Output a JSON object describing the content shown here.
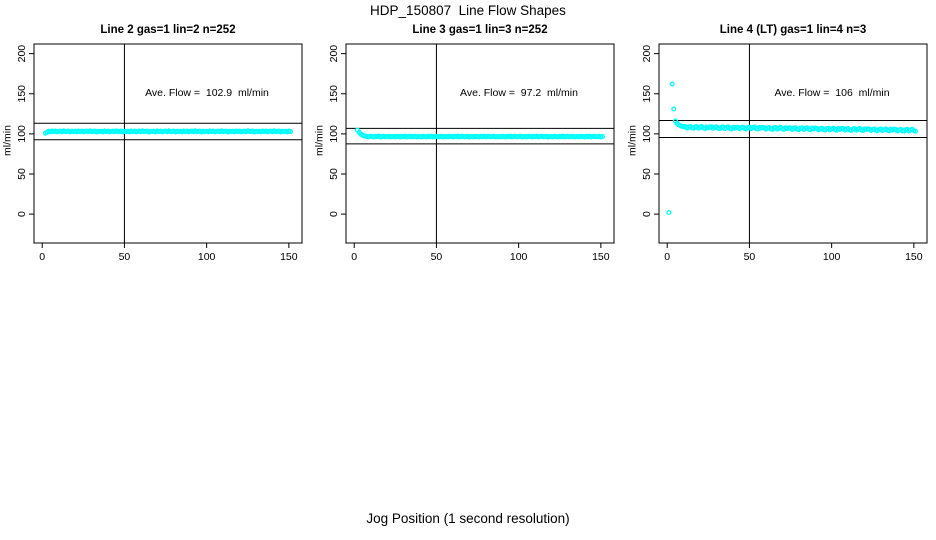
{
  "page": {
    "main_title": "HDP_150807  Line Flow Shapes",
    "x_axis_label": "Jog Position (1 second resolution)"
  },
  "colors": {
    "points": "#00FFFF",
    "axis": "#000000",
    "background": "#FFFFFF"
  },
  "chart_data": [
    {
      "type": "scatter",
      "title": "Line 2 gas=1 lin=2 n=252",
      "annotation": "Ave. Flow =  102.9  ml/min",
      "ave_flow_ml_min": 102.9,
      "ylabel": "ml/min",
      "marker": "open-circle",
      "xticks": [
        0,
        50,
        100,
        150
      ],
      "yticks": [
        0,
        50,
        100,
        150,
        200
      ],
      "xlim": [
        -5,
        158
      ],
      "ylim": [
        -36,
        212
      ],
      "ref_vline_x": 50,
      "ref_hlines": [
        113.2,
        92.6
      ],
      "annotation_center": {
        "x": 100,
        "y": 150
      },
      "outlier_points": [],
      "series": {
        "x_start": 2,
        "x_step": 1,
        "values": [
          100.8,
          102.0,
          103.2,
          102.6,
          103.5,
          102.9,
          103.3,
          102.5,
          103.1,
          103.4,
          102.7,
          103.6,
          102.8,
          103.0,
          103.4,
          102.4,
          103.2,
          102.8,
          103.2,
          102.6,
          103.5,
          102.9,
          103.3,
          102.5,
          103.1,
          103.4,
          102.7,
          103.6,
          102.8,
          103.0,
          103.4,
          102.4,
          103.2,
          102.8,
          103.2,
          102.6,
          103.5,
          102.9,
          103.3,
          102.5,
          103.1,
          103.4,
          102.7,
          103.6,
          102.8,
          103.0,
          103.4,
          102.4,
          103.2,
          102.8,
          103.2,
          102.6,
          103.5,
          102.9,
          103.3,
          102.5,
          103.1,
          103.4,
          102.7,
          103.6,
          102.8,
          103.0,
          103.4,
          102.4,
          103.2,
          102.8,
          103.2,
          102.6,
          103.5,
          102.9,
          103.3,
          102.5,
          103.1,
          103.4,
          102.7,
          103.6,
          102.8,
          103.0,
          103.4,
          102.4,
          103.2,
          102.8,
          103.2,
          102.6,
          103.5,
          102.9,
          103.3,
          102.5,
          103.1,
          103.4,
          102.7,
          103.6,
          102.8,
          103.0,
          103.4,
          102.4,
          103.2,
          102.8,
          103.2,
          102.6,
          103.5,
          102.9,
          103.3,
          102.5,
          103.1,
          103.4,
          102.7,
          103.6,
          102.8,
          103.0,
          103.4,
          102.4,
          103.2,
          102.8,
          103.2,
          102.6,
          103.5,
          102.9,
          103.3,
          102.5,
          103.1,
          103.4,
          102.7,
          103.6,
          102.8,
          103.0,
          103.4,
          102.4,
          103.2,
          102.8,
          103.2,
          102.6,
          103.5,
          102.9,
          103.3,
          102.5,
          103.1,
          103.4,
          102.7,
          103.6,
          102.8,
          103.0,
          103.4,
          102.4,
          103.2,
          102.8,
          103.2,
          102.6,
          103.5,
          102.9
        ]
      }
    },
    {
      "type": "scatter",
      "title": "Line 3 gas=1 lin=3 n=252",
      "annotation": "Ave. Flow =  97.2  ml/min",
      "ave_flow_ml_min": 97.2,
      "ylabel": "ml/min",
      "marker": "open-circle",
      "xticks": [
        0,
        50,
        100,
        150
      ],
      "yticks": [
        0,
        50,
        100,
        150,
        200
      ],
      "xlim": [
        -5,
        158
      ],
      "ylim": [
        -36,
        212
      ],
      "ref_vline_x": 50,
      "ref_hlines": [
        106.9,
        87.5
      ],
      "annotation_center": {
        "x": 100,
        "y": 150
      },
      "outlier_points": [],
      "series": {
        "x_start": 2,
        "x_step": 1,
        "values": [
          104.6,
          101.8,
          99.8,
          98.4,
          97.6,
          97.1,
          96.7,
          96.3,
          97.0,
          96.6,
          96.2,
          96.9,
          96.5,
          97.1,
          96.1,
          96.8,
          97.0,
          96.4,
          96.6,
          96.9,
          96.2,
          96.7,
          96.7,
          96.3,
          97.0,
          96.6,
          96.2,
          96.9,
          96.5,
          97.1,
          96.1,
          96.8,
          97.0,
          96.4,
          96.6,
          96.9,
          96.2,
          96.7,
          96.7,
          96.3,
          97.0,
          96.6,
          96.2,
          96.9,
          96.5,
          97.1,
          96.1,
          96.8,
          97.0,
          96.4,
          96.6,
          96.9,
          96.2,
          96.7,
          96.7,
          96.3,
          97.0,
          96.6,
          96.2,
          96.9,
          96.5,
          97.1,
          96.1,
          96.8,
          97.0,
          96.4,
          96.6,
          96.9,
          96.2,
          96.7,
          96.7,
          96.3,
          97.0,
          96.6,
          96.2,
          96.9,
          96.5,
          97.1,
          96.1,
          96.8,
          97.0,
          96.4,
          96.6,
          96.9,
          96.2,
          96.7,
          96.7,
          96.3,
          97.0,
          96.6,
          96.2,
          96.9,
          96.5,
          97.1,
          96.1,
          96.8,
          97.0,
          96.4,
          96.6,
          96.9,
          96.2,
          96.7,
          96.7,
          96.3,
          97.0,
          96.6,
          96.2,
          96.9,
          96.5,
          97.1,
          96.1,
          96.8,
          97.0,
          96.4,
          96.6,
          96.9,
          96.2,
          96.7,
          96.7,
          96.3,
          97.0,
          96.6,
          96.2,
          96.9,
          96.5,
          97.1,
          96.1,
          96.8,
          97.0,
          96.4,
          96.6,
          96.9,
          96.2,
          96.7,
          96.7,
          96.3,
          97.0,
          96.6,
          96.2,
          96.9,
          96.5,
          97.1,
          96.1,
          96.8,
          97.0,
          96.4,
          96.6,
          96.9,
          96.2,
          96.7
        ]
      }
    },
    {
      "type": "scatter",
      "title": "Line 4 (LT) gas=1 lin=4 n=3",
      "annotation": "Ave. Flow =  106  ml/min",
      "ave_flow_ml_min": 106,
      "ylabel": "ml/min",
      "marker": "open-circle",
      "xticks": [
        0,
        50,
        100,
        150
      ],
      "yticks": [
        0,
        50,
        100,
        150,
        200
      ],
      "xlim": [
        -5,
        158
      ],
      "ylim": [
        -36,
        212
      ],
      "ref_vline_x": 50,
      "ref_hlines": [
        116.6,
        95.4
      ],
      "annotation_center": {
        "x": 100,
        "y": 150
      },
      "outlier_points": [
        [
          1,
          2
        ],
        [
          3,
          162
        ],
        [
          4,
          131
        ]
      ],
      "series": {
        "x_start": 5,
        "x_step": 1,
        "values": [
          116.0,
          113.0,
          111.3,
          110.2,
          109.4,
          108.9,
          109.1,
          107.4,
          108.5,
          109.2,
          107.5,
          107.0,
          108.6,
          109.0,
          107.1,
          108.2,
          109.1,
          107.5,
          106.7,
          108.5,
          107.6,
          108.6,
          108.6,
          106.9,
          108.1,
          108.8,
          107.0,
          106.5,
          108.2,
          108.5,
          106.6,
          107.8,
          108.7,
          107.0,
          106.2,
          108.1,
          107.1,
          108.1,
          108.2,
          106.5,
          107.7,
          108.4,
          106.7,
          106.2,
          107.9,
          108.3,
          106.4,
          107.6,
          108.5,
          106.9,
          106.1,
          108.0,
          107.1,
          108.1,
          107.7,
          106.0,
          107.2,
          107.9,
          106.2,
          105.7,
          107.4,
          107.8,
          105.9,
          107.1,
          108.0,
          106.4,
          105.6,
          107.5,
          106.6,
          107.6,
          107.3,
          105.6,
          106.8,
          107.5,
          105.8,
          105.3,
          107.0,
          107.4,
          105.5,
          106.7,
          107.6,
          106.0,
          105.2,
          107.1,
          106.2,
          107.2,
          106.8,
          105.1,
          106.3,
          107.0,
          105.3,
          104.8,
          106.5,
          106.9,
          105.0,
          106.2,
          107.1,
          105.5,
          104.7,
          106.6,
          105.7,
          106.7,
          106.4,
          104.7,
          105.9,
          106.6,
          104.9,
          104.4,
          106.1,
          106.5,
          104.6,
          105.8,
          106.7,
          105.1,
          104.3,
          106.2,
          105.3,
          106.3,
          105.9,
          104.2,
          105.4,
          106.1,
          104.4,
          103.9,
          105.6,
          106.0,
          104.1,
          105.3,
          106.2,
          104.6,
          103.8,
          105.7,
          104.8,
          105.8,
          105.4,
          103.7,
          104.9,
          105.6,
          103.9,
          103.4,
          105.1,
          105.5,
          103.6,
          104.8,
          105.7,
          104.1,
          103.3
        ]
      }
    }
  ]
}
